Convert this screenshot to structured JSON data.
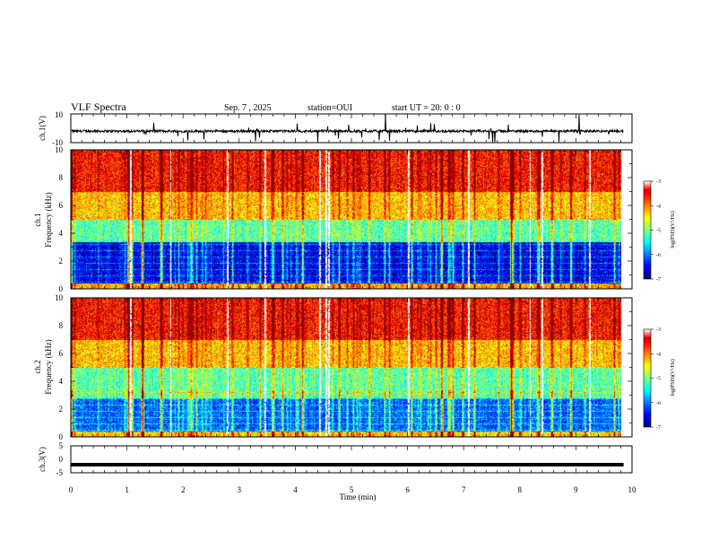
{
  "header": {
    "title": "VLF Spectra",
    "date": "Sep. 7 , 2025",
    "station": "station=OUI",
    "start_time": "start UT =  20: 0  : 0"
  },
  "chart_data": [
    {
      "type": "line",
      "panel": "ch1-waveform",
      "ylabel": "ch.1(V)",
      "ylim": [
        -10,
        10
      ],
      "ytick_labels": [
        "10",
        "-10"
      ],
      "x_range_min": [
        0,
        9.85
      ],
      "baseline_v": -2,
      "line_color": "#000000"
    },
    {
      "type": "heatmap",
      "panel": "ch1-spectrogram",
      "ylabel": "ch.1 Frequency (kHz)",
      "ylim": [
        0,
        10
      ],
      "ytick_labels": [
        "0",
        "2",
        "4",
        "6",
        "8",
        "10"
      ],
      "x_range_min": [
        0,
        9.85
      ],
      "colorbar": {
        "label": "log(PSD)(V²/Hz)",
        "range": [
          -7,
          -3
        ],
        "tick_labels": [
          "-3",
          "-4",
          "-5",
          "-6",
          "-7"
        ]
      },
      "bands_khz": [
        {
          "from": 0,
          "to": 0.4,
          "level": 0.7
        },
        {
          "from": 0.4,
          "to": 3.4,
          "level": 0.1
        },
        {
          "from": 3.4,
          "to": 5.0,
          "level": 0.46
        },
        {
          "from": 5.0,
          "to": 7.0,
          "level": 0.68
        },
        {
          "from": 7.0,
          "to": 10,
          "level": 0.86
        }
      ]
    },
    {
      "type": "heatmap",
      "panel": "ch2-spectrogram",
      "ylabel": "ch.2 Frequency (kHz)",
      "ylim": [
        0,
        10
      ],
      "ytick_labels": [
        "0",
        "2",
        "4",
        "6",
        "8",
        "10"
      ],
      "x_range_min": [
        0,
        9.85
      ],
      "colorbar": {
        "label": "log(PSD)(V²/Hz)",
        "range": [
          -7,
          -3
        ],
        "tick_labels": [
          "-3",
          "-4",
          "-5",
          "-6",
          "-7"
        ]
      },
      "bands_khz": [
        {
          "from": 0,
          "to": 0.4,
          "level": 0.66
        },
        {
          "from": 0.4,
          "to": 2.8,
          "level": 0.22
        },
        {
          "from": 2.8,
          "to": 5.0,
          "level": 0.46
        },
        {
          "from": 5.0,
          "to": 7.0,
          "level": 0.68
        },
        {
          "from": 7.0,
          "to": 10,
          "level": 0.86
        }
      ]
    },
    {
      "type": "line",
      "panel": "ch3-waveform",
      "ylabel": "ch.3(V)",
      "ylim": [
        -5,
        5
      ],
      "ytick_labels": [
        "5",
        "0",
        "-5"
      ],
      "x_range_min": [
        0,
        9.85
      ],
      "constant_value_v": -2
    }
  ],
  "xaxis": {
    "label": "Time (min)",
    "range": [
      0,
      10
    ],
    "tick_labels": [
      "0",
      "1",
      "2",
      "3",
      "4",
      "5",
      "6",
      "7",
      "8",
      "9",
      "10"
    ]
  }
}
